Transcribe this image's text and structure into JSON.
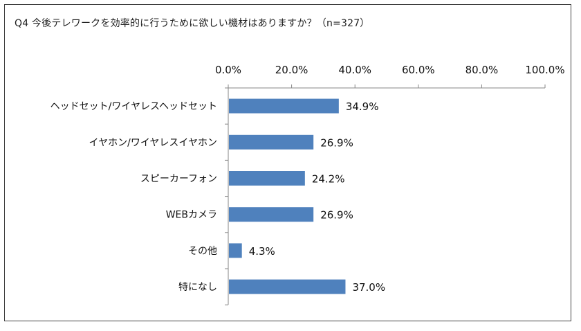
{
  "chart_data": {
    "type": "bar",
    "orientation": "horizontal",
    "title": "Q4 今後テレワークを効率的に行うために欲しい機材はありますか？（n=327）",
    "categories": [
      "ヘッドセット/ワイヤレスヘッドセット",
      "イヤホン/ワイヤレスイヤホン",
      "スピーカーフォン",
      "WEBカメラ",
      "その他",
      "特になし"
    ],
    "values": [
      34.9,
      26.9,
      24.2,
      26.9,
      4.3,
      37.0
    ],
    "value_labels": [
      "34.9%",
      "26.9%",
      "24.2%",
      "26.9%",
      "4.3%",
      "37.0%"
    ],
    "xlim": [
      0,
      100
    ],
    "x_ticks": [
      0,
      20,
      40,
      60,
      80,
      100
    ],
    "x_tick_labels": [
      "0.0%",
      "20.0%",
      "40.0%",
      "60.0%",
      "80.0%",
      "100.0%"
    ],
    "x_axis_position": "top",
    "grid": false,
    "legend": "none",
    "bar_color": "#4f81bd"
  }
}
